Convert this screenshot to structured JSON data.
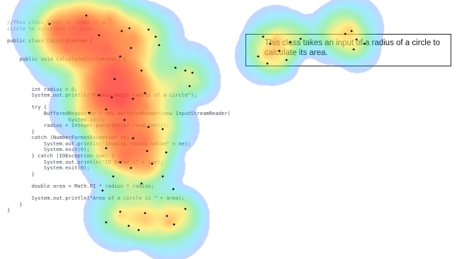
{
  "code_lines": [
    {
      "text": "//This class takes an input of a",
      "kind": "cmt"
    },
    {
      "text": "circle to calculate its area",
      "kind": "cmt"
    },
    {
      "text": "",
      "kind": "blank"
    },
    {
      "text": "public class CalculateArea {",
      "kind": "code"
    },
    {
      "text": "",
      "kind": "blank"
    },
    {
      "text": "",
      "kind": "blank"
    },
    {
      "text": "    public void CalculateCircleArea() {",
      "kind": "code"
    },
    {
      "text": "",
      "kind": "blank"
    },
    {
      "text": "",
      "kind": "blank"
    },
    {
      "text": "",
      "kind": "blank"
    },
    {
      "text": "",
      "kind": "blank"
    },
    {
      "text": "        int radius = 0;",
      "kind": "code"
    },
    {
      "text": "        System.out.println(\"Please enter radius of a circle\");",
      "kind": "code"
    },
    {
      "text": "",
      "kind": "blank"
    },
    {
      "text": "        try {",
      "kind": "code"
    },
    {
      "text": "            BufferedReader br = new BufferedReader(new InputStreamReader(",
      "kind": "code"
    },
    {
      "text": "                    System.in));",
      "kind": "code"
    },
    {
      "text": "            radius = Integer.parseInt(br.readLine());",
      "kind": "code"
    },
    {
      "text": "        }",
      "kind": "code"
    },
    {
      "text": "        catch (NumberFormatException ne) {",
      "kind": "code"
    },
    {
      "text": "            System.out.println(\"Invalid radius value\" + ne);",
      "kind": "code"
    },
    {
      "text": "            System.exit(0);",
      "kind": "code"
    },
    {
      "text": "        } catch (IOException ioe) {",
      "kind": "code"
    },
    {
      "text": "            System.out.println(\"IO Error :\" + ioe);",
      "kind": "code"
    },
    {
      "text": "            System.exit(0);",
      "kind": "code"
    },
    {
      "text": "        }",
      "kind": "code"
    },
    {
      "text": "",
      "kind": "blank"
    },
    {
      "text": "        double area = Math.PI * radius * radius;",
      "kind": "code"
    },
    {
      "text": "",
      "kind": "blank"
    },
    {
      "text": "        System.out.println(\"Area of a circle is \" + area);",
      "kind": "code"
    },
    {
      "text": "    }",
      "kind": "code"
    },
    {
      "text": "}",
      "kind": "code"
    }
  ],
  "summary_text": "This class takes an input of a radius of a circle to calculate its area.",
  "heatmap_colors": [
    "#3040ff",
    "#00c8ff",
    "#40e060",
    "#ffe840",
    "#ff8020",
    "#ff2828"
  ]
}
